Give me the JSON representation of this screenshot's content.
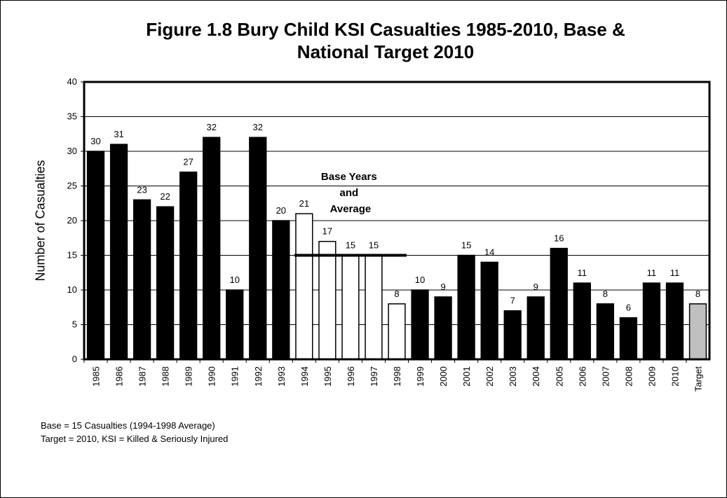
{
  "chart_data": {
    "type": "bar",
    "title": "Figure 1.8 Bury Child KSI Casualties 1985-2010, Base & National Target 2010",
    "title_lines": [
      "Figure 1.8 Bury Child KSI Casualties 1985-2010, Base &",
      "National Target 2010"
    ],
    "ylabel": "Number of Casualties",
    "xlabel": "",
    "ylim": [
      0,
      40
    ],
    "yticks": [
      0,
      5,
      10,
      15,
      20,
      25,
      30,
      35,
      40
    ],
    "grid": true,
    "categories": [
      "1985",
      "1986",
      "1987",
      "1988",
      "1989",
      "1990",
      "1991",
      "1992",
      "1993",
      "1994",
      "1995",
      "1996",
      "1997",
      "1998",
      "1999",
      "2000",
      "2001",
      "2002",
      "2003",
      "2004",
      "2005",
      "2006",
      "2007",
      "2008",
      "2009",
      "2010",
      "Target"
    ],
    "values": [
      30,
      31,
      23,
      22,
      27,
      32,
      10,
      32,
      20,
      21,
      17,
      15,
      15,
      8,
      10,
      9,
      15,
      14,
      7,
      9,
      16,
      11,
      8,
      6,
      11,
      11,
      8
    ],
    "bar_styles": [
      "actual",
      "actual",
      "actual",
      "actual",
      "actual",
      "actual",
      "actual",
      "actual",
      "actual",
      "base",
      "base",
      "base",
      "base",
      "base",
      "actual",
      "actual",
      "actual",
      "actual",
      "actual",
      "actual",
      "actual",
      "actual",
      "actual",
      "actual",
      "actual",
      "actual",
      "target"
    ],
    "colors": {
      "actual": "#000000",
      "base": "#ffffff",
      "target": "#c0c0c0"
    },
    "base_average": {
      "value": 15,
      "from": "1994",
      "to": "1998"
    },
    "annotation": [
      "Base Years",
      "and",
      "Average"
    ]
  },
  "notes": {
    "line1": "Base = 15 Casualties (1994-1998 Average)",
    "line2": "Target = 2010, KSI = Killed & Seriously Injured"
  }
}
